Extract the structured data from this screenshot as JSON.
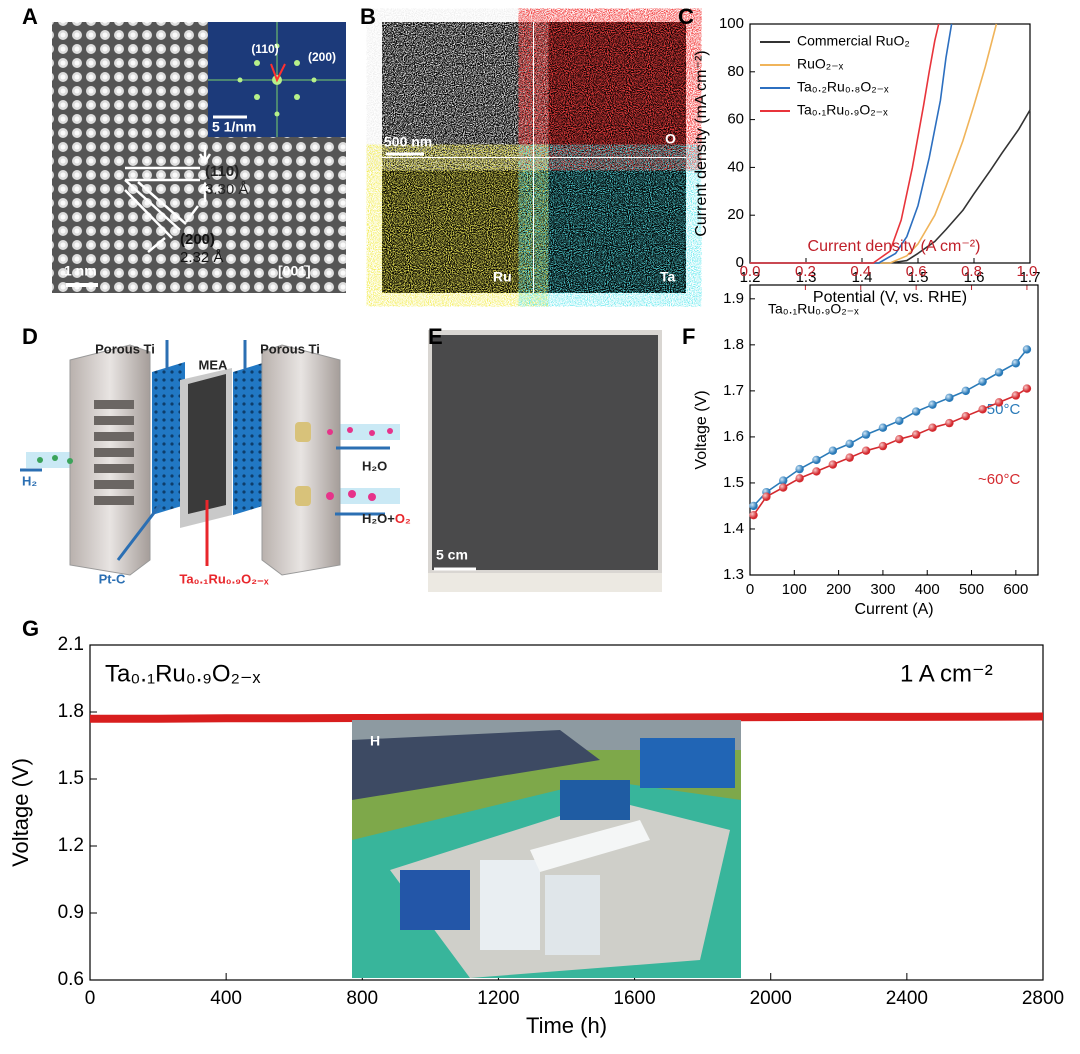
{
  "chart_data": [
    {
      "type": "line",
      "xlabel": "Potential (V, vs. RHE)",
      "ylabel": "Current density (mA cm⁻²)",
      "xlim": [
        1.2,
        1.7
      ],
      "xticks": [
        1.2,
        1.3,
        1.4,
        1.5,
        1.6,
        1.7
      ],
      "ylim": [
        0,
        100
      ],
      "yticks": [
        0,
        20,
        40,
        60,
        80,
        100
      ],
      "legend": "upper-left",
      "series": [
        {
          "name": "Commercial RuO₂",
          "color": "#333333",
          "x": [
            1.2,
            1.45,
            1.48,
            1.5,
            1.53,
            1.55,
            1.58,
            1.6,
            1.63,
            1.65,
            1.68,
            1.7
          ],
          "values": [
            0,
            0,
            1,
            4,
            9,
            14,
            22,
            29,
            39,
            46,
            56,
            64
          ]
        },
        {
          "name": "RuO₂₋ₓ",
          "color": "#f0b45a",
          "x": [
            1.2,
            1.45,
            1.48,
            1.5,
            1.53,
            1.55,
            1.58,
            1.6,
            1.62,
            1.64
          ],
          "values": [
            0,
            0,
            3,
            8,
            20,
            32,
            51,
            66,
            82,
            100
          ]
        },
        {
          "name": "Ta₀.₂Ru₀.₈O₂₋ₓ",
          "color": "#2c6fc0",
          "x": [
            1.2,
            1.43,
            1.46,
            1.48,
            1.5,
            1.52,
            1.54,
            1.55,
            1.56
          ],
          "values": [
            0,
            0,
            4,
            11,
            24,
            44,
            68,
            86,
            100
          ]
        },
        {
          "name": "Ta₀.₁Ru₀.₉O₂₋ₓ",
          "color": "#e8343b",
          "x": [
            1.2,
            1.42,
            1.45,
            1.47,
            1.49,
            1.51,
            1.52,
            1.53,
            1.537
          ],
          "values": [
            0,
            0,
            5,
            18,
            40,
            66,
            80,
            93,
            100
          ]
        }
      ]
    },
    {
      "type": "line",
      "xlabel": "Current (A)",
      "ylabel": "Voltage (V)",
      "x2label": "Current density (A cm⁻²)",
      "annotation": "Ta₀.₁Ru₀.₉O₂₋ₓ",
      "xlim": [
        0,
        650
      ],
      "xticks": [
        0,
        100,
        200,
        300,
        400,
        500,
        600
      ],
      "x2lim": [
        0,
        1.04
      ],
      "x2ticks": [
        {
          "value": 0,
          "label": "0.0"
        },
        0.2,
        0.4,
        0.6,
        0.8,
        {
          "value": 1,
          "label": "1.0"
        }
      ],
      "ylim": [
        1.3,
        1.93
      ],
      "yticks": [
        1.3,
        1.4,
        1.5,
        1.6,
        1.7,
        1.8,
        1.9
      ],
      "series": [
        {
          "name": "~50°C",
          "color": "#2a7ab8",
          "x": [
            8,
            37,
            75,
            112,
            150,
            187,
            225,
            262,
            300,
            337,
            375,
            412,
            450,
            487,
            525,
            562,
            600,
            625
          ],
          "values": [
            1.45,
            1.48,
            1.505,
            1.53,
            1.55,
            1.57,
            1.585,
            1.605,
            1.62,
            1.635,
            1.655,
            1.67,
            1.685,
            1.7,
            1.72,
            1.74,
            1.76,
            1.79
          ]
        },
        {
          "name": "~60°C",
          "color": "#d42a2f",
          "x": [
            8,
            37,
            75,
            112,
            150,
            187,
            225,
            262,
            300,
            337,
            375,
            412,
            450,
            487,
            525,
            562,
            600,
            625
          ],
          "values": [
            1.43,
            1.47,
            1.49,
            1.51,
            1.525,
            1.54,
            1.555,
            1.57,
            1.58,
            1.595,
            1.605,
            1.62,
            1.63,
            1.645,
            1.66,
            1.675,
            1.69,
            1.705
          ]
        }
      ]
    },
    {
      "type": "line",
      "xlabel": "Time (h)",
      "ylabel": "Voltage (V)",
      "annotation": "Ta₀.₁Ru₀.₉O₂₋ₓ",
      "condition": "1 A cm⁻²",
      "xlim": [
        0,
        2800
      ],
      "xticks": [
        0,
        400,
        800,
        1200,
        1600,
        2000,
        2400,
        2800
      ],
      "ylim": [
        0.6,
        2.1
      ],
      "yticks": [
        0.6,
        0.9,
        1.2,
        1.5,
        1.8,
        2.1
      ],
      "series": [
        {
          "name": null,
          "color": "#d81e1e",
          "x": [
            0,
            200,
            400,
            600,
            800,
            1000,
            1200,
            1400,
            1600,
            1800,
            2000,
            2200,
            2400,
            2600,
            2800
          ],
          "values": [
            1.77,
            1.77,
            1.772,
            1.772,
            1.773,
            1.774,
            1.774,
            1.775,
            1.775,
            1.776,
            1.777,
            1.778,
            1.778,
            1.779,
            1.78
          ]
        }
      ]
    }
  ],
  "panels": {
    "labels": [
      "A",
      "B",
      "C",
      "D",
      "E",
      "F",
      "G",
      "H"
    ],
    "a": {
      "fft_spots": [
        "(110)",
        "(200)"
      ],
      "fft_scale": "5 1/nm",
      "planes": [
        "(110)",
        "(200)"
      ],
      "spacings": [
        "3.30 Å",
        "2.32 Å"
      ],
      "scale": "1 nm",
      "zone_axis": "[001̄]"
    },
    "b": {
      "scale": "500 nm",
      "elements": [
        "O",
        "Ru",
        "Ta"
      ]
    },
    "d": {
      "porous": [
        "Porous Ti",
        "Porous Ti"
      ],
      "mea": "MEA",
      "h2": "H₂",
      "h2o": "H₂O",
      "products": [
        "H₂O+",
        "O₂"
      ],
      "cathode": "Pt-C",
      "anode": "Ta₀.₁Ru₀.₉O₂₋ₓ"
    },
    "e": {
      "scale": "5 cm"
    }
  }
}
